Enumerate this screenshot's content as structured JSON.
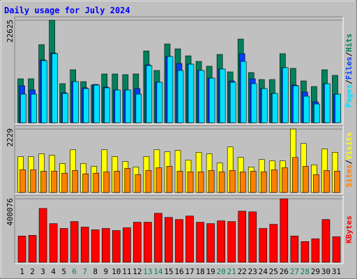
{
  "chart_data": [
    {
      "type": "bar",
      "title": "Daily usage for July 2024",
      "series": [
        {
          "name": "Hits",
          "color": "#00805c",
          "values": [
            9700,
            9700,
            17240,
            22625,
            8620,
            11700,
            9080,
            8310,
            10770,
            10770,
            10620,
            10770,
            15850,
            11540,
            17390,
            16310,
            14770,
            13540,
            12470,
            15080,
            11230,
            18470,
            11080,
            9540,
            9540,
            15240,
            12000,
            9230,
            8000,
            11700,
            10460
          ]
        },
        {
          "name": "Files",
          "color": "#0040ff",
          "values": [
            8160,
            7230,
            13850,
            15390,
            6620,
            9080,
            7700,
            8460,
            7850,
            7230,
            7230,
            7540,
            12770,
            8930,
            14620,
            13080,
            12930,
            11540,
            9850,
            11850,
            9230,
            15240,
            9700,
            7540,
            6460,
            12160,
            8310,
            6770,
            4620,
            8620,
            6310
          ]
        },
        {
          "name": "Pages",
          "color": "#00e0ff",
          "values": [
            6310,
            6310,
            13700,
            15240,
            6460,
            9080,
            7540,
            8310,
            7700,
            7230,
            7230,
            6310,
            12620,
            8930,
            14620,
            11540,
            12930,
            11540,
            9850,
            11850,
            8930,
            13540,
            8620,
            7540,
            6460,
            12160,
            8160,
            5850,
            4150,
            8620,
            6310
          ]
        }
      ],
      "legend_separator": "/",
      "ylim": [
        0,
        22625
      ],
      "yticks": [
        22625
      ]
    },
    {
      "type": "bar",
      "series": [
        {
          "name": "Visits",
          "color": "#ffff00",
          "values": [
            1260,
            1260,
            1360,
            1310,
            1020,
            1500,
            1020,
            920,
            1500,
            1260,
            1090,
            895,
            1260,
            1500,
            1430,
            1480,
            1140,
            1410,
            1360,
            1040,
            1600,
            1230,
            895,
            1160,
            1110,
            1110,
            2229,
            1720,
            970,
            1530,
            1410
          ]
        },
        {
          "name": "Sites",
          "color": "#ff8000",
          "values": [
            800,
            800,
            750,
            750,
            680,
            775,
            655,
            680,
            725,
            750,
            850,
            630,
            775,
            870,
            920,
            750,
            725,
            725,
            775,
            725,
            775,
            725,
            750,
            725,
            800,
            870,
            1230,
            920,
            630,
            775,
            750
          ]
        }
      ],
      "legend_separator": "/",
      "ylim": [
        0,
        2229
      ],
      "yticks": [
        2229
      ]
    },
    {
      "type": "bar",
      "series": [
        {
          "name": "KBytes",
          "color": "#ff0000",
          "values": [
            165300,
            169600,
            339200,
            243600,
            213100,
            256600,
            221800,
            204400,
            213100,
            200100,
            217500,
            252200,
            252200,
            308800,
            282700,
            269600,
            291400,
            252200,
            243600,
            261000,
            256600,
            321900,
            317600,
            213100,
            239200,
            400076,
            165300,
            130500,
            147900,
            269600,
            161000
          ]
        }
      ],
      "ylim": [
        0,
        400076
      ],
      "yticks": [
        400076
      ],
      "categories": [
        "1",
        "2",
        "3",
        "4",
        "5",
        "6",
        "7",
        "8",
        "9",
        "10",
        "11",
        "12",
        "13",
        "14",
        "15",
        "16",
        "17",
        "18",
        "19",
        "20",
        "21",
        "22",
        "23",
        "24",
        "25",
        "26",
        "27",
        "28",
        "29",
        "30",
        "31"
      ],
      "category_colors": [
        "#000000",
        "#000000",
        "#000000",
        "#000000",
        "#000000",
        "#00805c",
        "#00805c",
        "#000000",
        "#000000",
        "#000000",
        "#000000",
        "#000000",
        "#00805c",
        "#00805c",
        "#000000",
        "#000000",
        "#000000",
        "#000000",
        "#000000",
        "#00805c",
        "#00805c",
        "#000000",
        "#000000",
        "#000000",
        "#000000",
        "#000000",
        "#00805c",
        "#00805c",
        "#000000",
        "#000000",
        "#000000"
      ]
    }
  ]
}
